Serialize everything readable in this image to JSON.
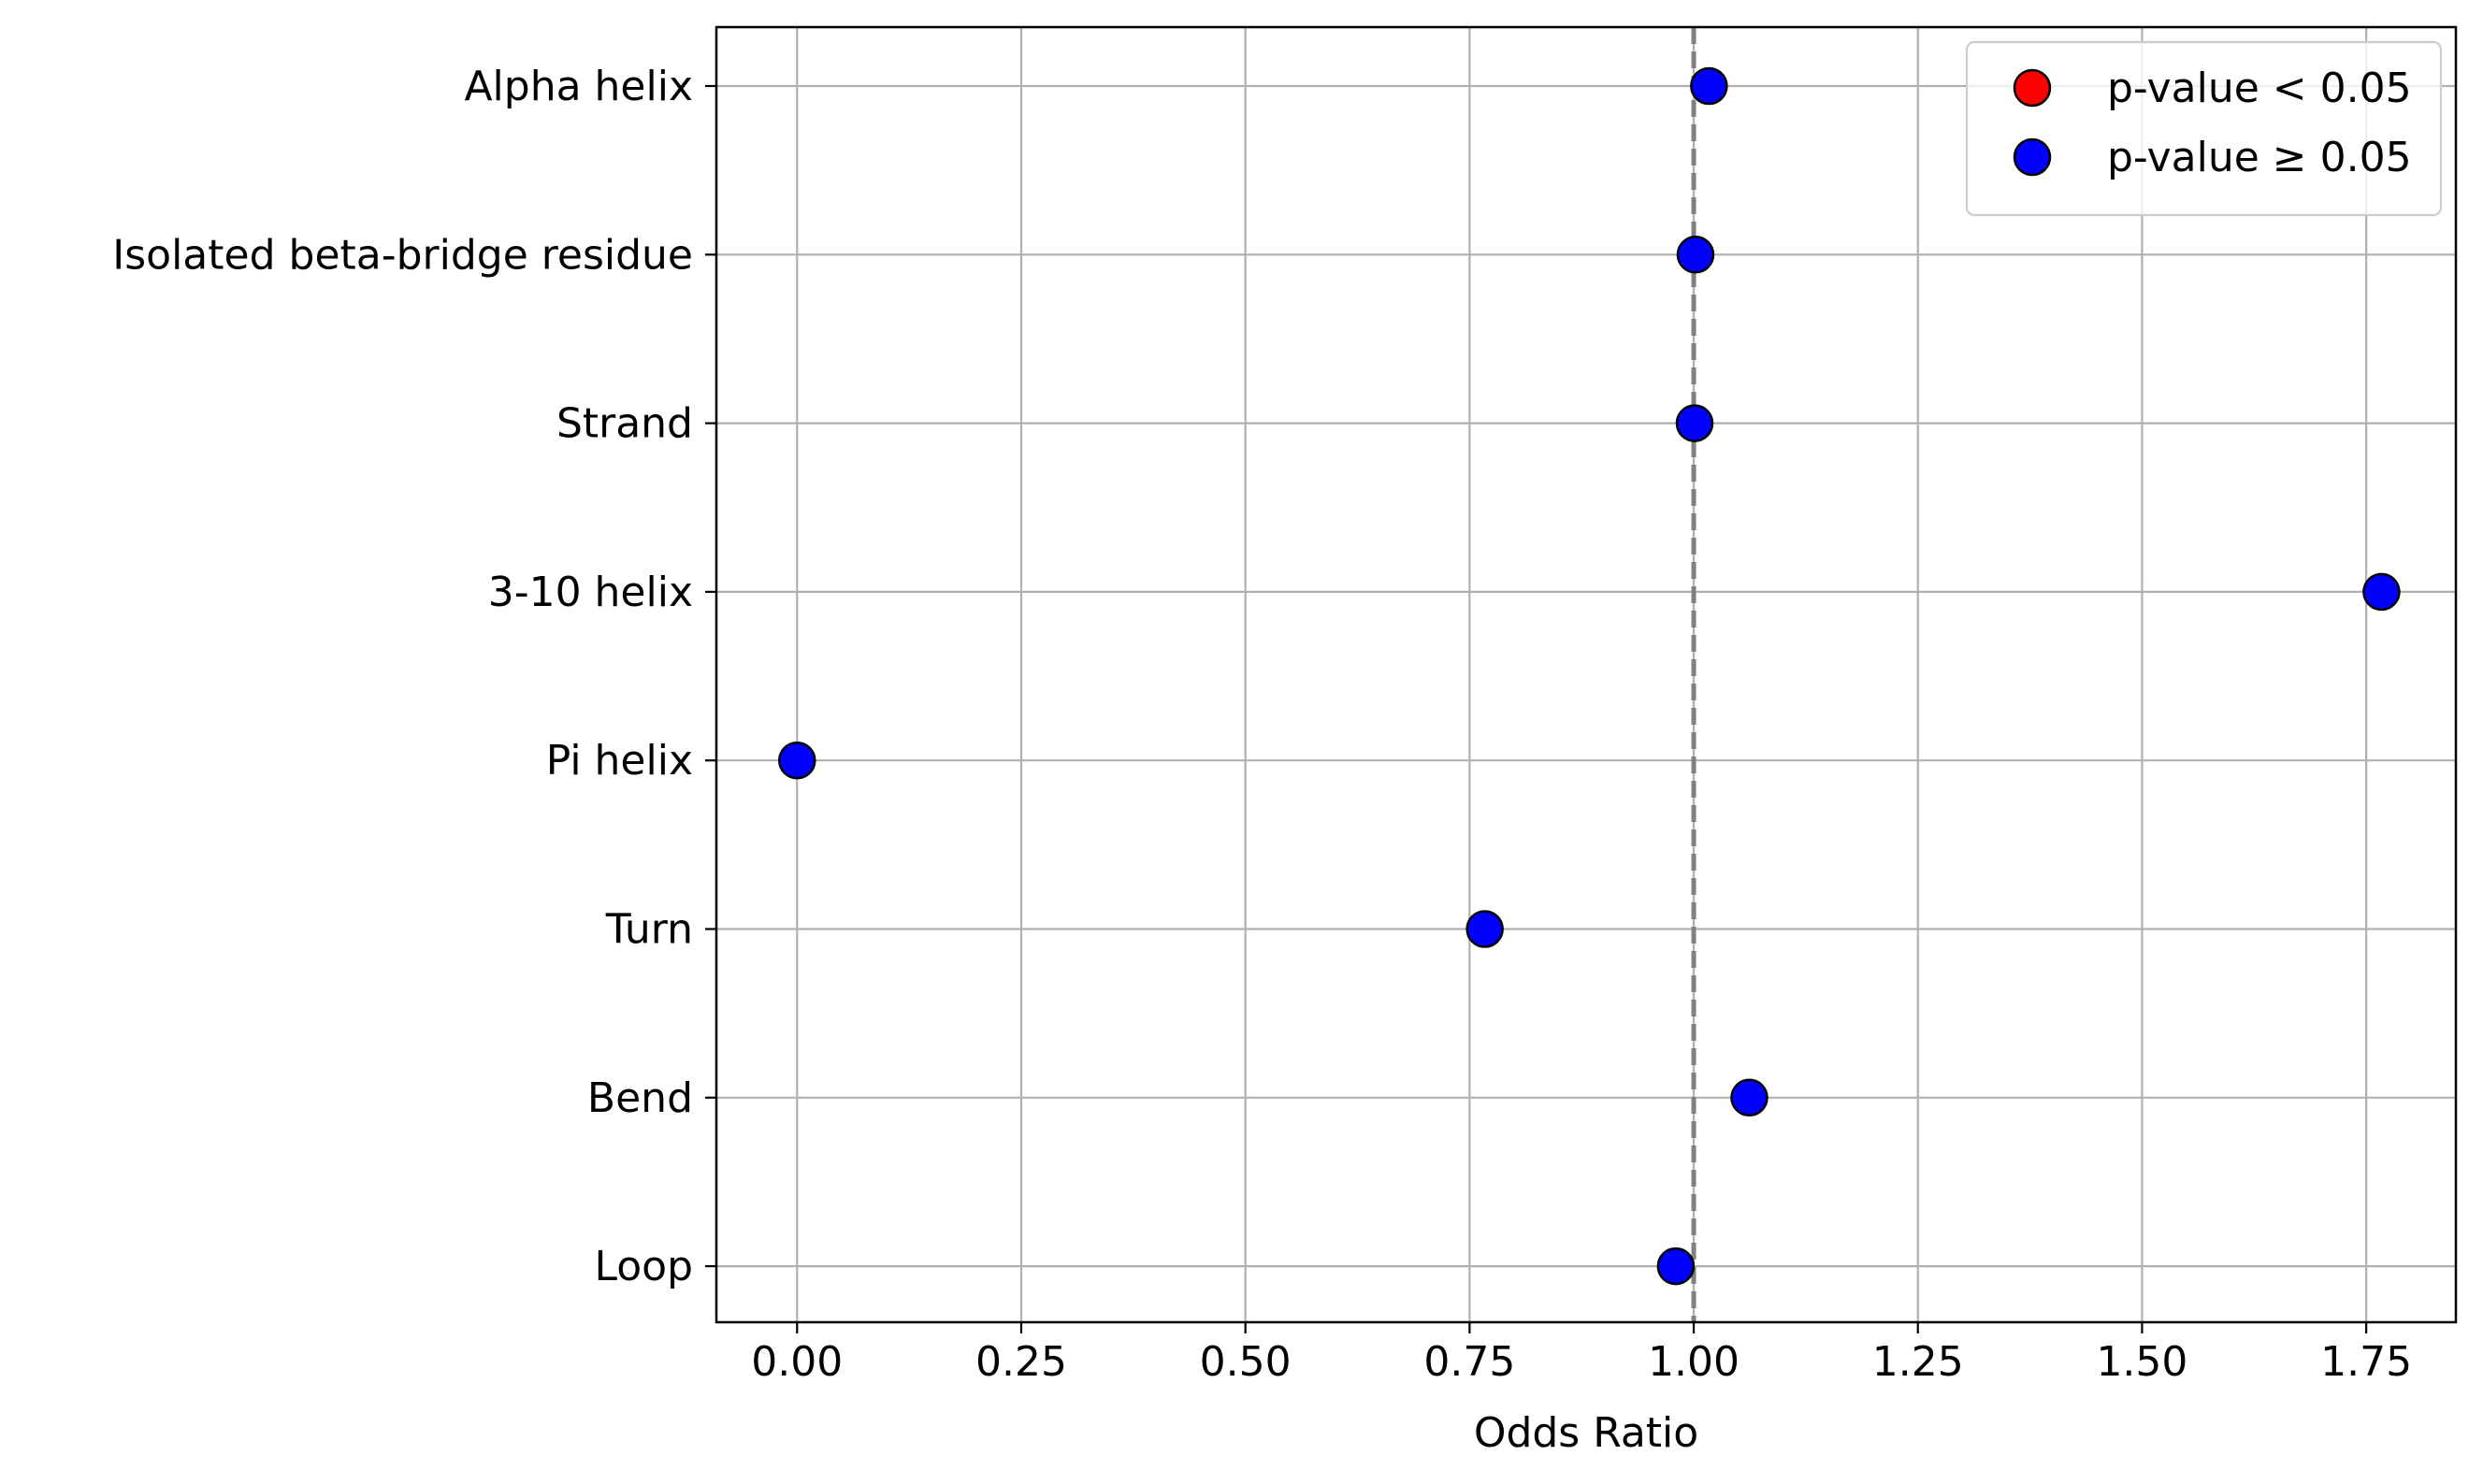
{
  "chart_data": {
    "type": "scatter",
    "title": "",
    "xlabel": "Odds Ratio",
    "ylabel": "",
    "xlim": [
      -0.09,
      1.85
    ],
    "x_ticks": [
      0.0,
      0.25,
      0.5,
      0.75,
      1.0,
      1.25,
      1.5,
      1.75
    ],
    "x_tick_labels": [
      "0.00",
      "0.25",
      "0.50",
      "0.75",
      "1.00",
      "1.25",
      "1.50",
      "1.75"
    ],
    "grid": true,
    "reference_line": {
      "x": 1.0,
      "style": "dashed",
      "color": "#808080"
    },
    "categories": [
      "Alpha helix",
      "Isolated beta-bridge residue",
      "Strand",
      "3-10 helix",
      "Pi helix",
      "Turn",
      "Bend",
      "Loop"
    ],
    "points": [
      {
        "category": "Alpha helix",
        "x": 1.017,
        "significant": false
      },
      {
        "category": "Isolated beta-bridge residue",
        "x": 1.002,
        "significant": false
      },
      {
        "category": "Strand",
        "x": 1.001,
        "significant": false
      },
      {
        "category": "3-10 helix",
        "x": 1.767,
        "significant": false
      },
      {
        "category": "Pi helix",
        "x": 0.0,
        "significant": false
      },
      {
        "category": "Turn",
        "x": 0.767,
        "significant": false
      },
      {
        "category": "Bend",
        "x": 1.062,
        "significant": false
      },
      {
        "category": "Loop",
        "x": 0.98,
        "significant": false
      }
    ],
    "legend": {
      "position": "top-right",
      "entries": [
        {
          "label": "p-value < 0.05",
          "color": "#ff0000"
        },
        {
          "label": "p-value ≥ 0.05",
          "color": "#0000ff"
        }
      ]
    },
    "colors": {
      "significant": "#ff0000",
      "not_significant": "#0000ff",
      "grid": "#b0b0b0",
      "marker_edge": "#000000"
    }
  }
}
